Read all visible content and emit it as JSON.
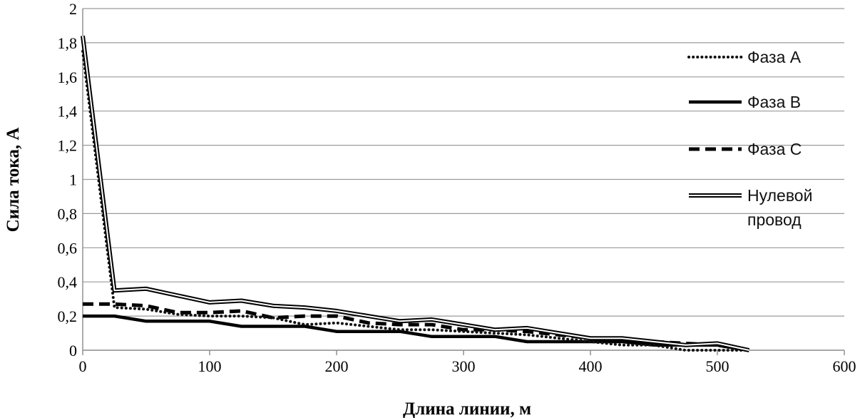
{
  "chart_data": {
    "type": "line",
    "title": "",
    "xlabel": "Длина линии, м",
    "ylabel": "Сила тока, А",
    "xlim": [
      0,
      600
    ],
    "ylim": [
      0,
      2
    ],
    "x_ticks": [
      "0",
      "100",
      "200",
      "300",
      "400",
      "500",
      "600"
    ],
    "y_ticks": [
      "0",
      "0,2",
      "0,4",
      "0,6",
      "0,8",
      "1",
      "1,2",
      "1,4",
      "1,6",
      "1,8",
      "2"
    ],
    "grid": "horizontal",
    "legend_position": "right",
    "x": [
      0,
      25,
      50,
      75,
      100,
      125,
      150,
      175,
      200,
      225,
      250,
      275,
      300,
      325,
      350,
      375,
      400,
      425,
      450,
      475,
      500,
      525
    ],
    "series": [
      {
        "name": "Фаза А",
        "style": "dotted",
        "values": [
          1.75,
          0.25,
          0.24,
          0.21,
          0.2,
          0.2,
          0.19,
          0.15,
          0.16,
          0.14,
          0.12,
          0.12,
          0.11,
          0.1,
          0.09,
          0.07,
          0.05,
          0.03,
          0.03,
          0.0,
          0.0,
          0.0
        ]
      },
      {
        "name": "Фаза В",
        "style": "solid",
        "values": [
          0.2,
          0.2,
          0.17,
          0.17,
          0.17,
          0.14,
          0.14,
          0.14,
          0.11,
          0.11,
          0.11,
          0.08,
          0.08,
          0.08,
          0.05,
          0.05,
          0.05,
          0.05,
          0.03,
          0.03,
          0.03,
          0.0
        ]
      },
      {
        "name": "Фаза С",
        "style": "dashed",
        "values": [
          0.27,
          0.27,
          0.26,
          0.22,
          0.22,
          0.23,
          0.19,
          0.2,
          0.2,
          0.16,
          0.15,
          0.15,
          0.12,
          0.12,
          0.11,
          0.09,
          0.07,
          0.07,
          0.05,
          0.04,
          0.03,
          0.0
        ]
      },
      {
        "name": "Нулевой провод",
        "style": "double",
        "values": [
          1.84,
          0.35,
          0.36,
          0.32,
          0.28,
          0.29,
          0.26,
          0.25,
          0.23,
          0.2,
          0.17,
          0.18,
          0.15,
          0.12,
          0.13,
          0.1,
          0.07,
          0.07,
          0.05,
          0.03,
          0.04,
          0.0
        ]
      }
    ]
  }
}
